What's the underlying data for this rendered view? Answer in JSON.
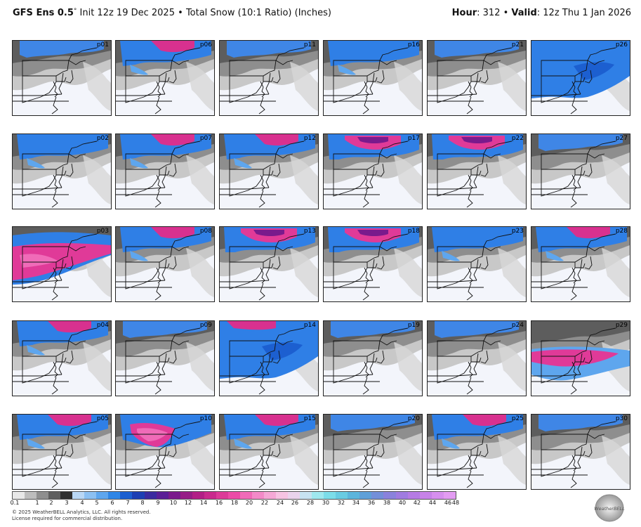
{
  "header": {
    "model": "GFS Ens 0.5",
    "degree": "°",
    "init": "Init 12z 19 Dec 2025",
    "sep": "•",
    "product": "Total Snow (10:1 Ratio) (Inches)",
    "hour_label": "Hour",
    "hour_value": ": 312",
    "valid_label": "Valid",
    "valid_value": ": 12z Thu 1 Jan 2026"
  },
  "panels": [
    {
      "label": "p01",
      "intensity": "low-north"
    },
    {
      "label": "p06",
      "intensity": "mid-north-pink"
    },
    {
      "label": "p11",
      "intensity": "low-north"
    },
    {
      "label": "p16",
      "intensity": "mid-north"
    },
    {
      "label": "p21",
      "intensity": "low-north"
    },
    {
      "label": "p26",
      "intensity": "wide-blue"
    },
    {
      "label": "p02",
      "intensity": "mid-north"
    },
    {
      "label": "p07",
      "intensity": "mid-north-pink"
    },
    {
      "label": "p12",
      "intensity": "mid-north-pink"
    },
    {
      "label": "p17",
      "intensity": "pink-north"
    },
    {
      "label": "p22",
      "intensity": "pink-north"
    },
    {
      "label": "p27",
      "intensity": "low-north"
    },
    {
      "label": "p03",
      "intensity": "pink-band"
    },
    {
      "label": "p08",
      "intensity": "mid-north-pink"
    },
    {
      "label": "p13",
      "intensity": "pink-north"
    },
    {
      "label": "p18",
      "intensity": "pink-north"
    },
    {
      "label": "p23",
      "intensity": "mid-north"
    },
    {
      "label": "p28",
      "intensity": "mid-north-pink"
    },
    {
      "label": "p04",
      "intensity": "mid-north-pink"
    },
    {
      "label": "p09",
      "intensity": "low-north"
    },
    {
      "label": "p14",
      "intensity": "wide-blue-pink"
    },
    {
      "label": "p19",
      "intensity": "low-north"
    },
    {
      "label": "p24",
      "intensity": "low-north"
    },
    {
      "label": "p29",
      "intensity": "pink-band-mid"
    },
    {
      "label": "p05",
      "intensity": "mid-north-pink"
    },
    {
      "label": "p10",
      "intensity": "pink-center"
    },
    {
      "label": "p15",
      "intensity": "mid-north-pink"
    },
    {
      "label": "p20",
      "intensity": "low-north"
    },
    {
      "label": "p25",
      "intensity": "mid-north-pink"
    },
    {
      "label": "p30",
      "intensity": "low-north"
    }
  ],
  "colorbar": {
    "colors": [
      "#e8e8e8",
      "#bdbdbd",
      "#8f8f8f",
      "#5f5f5f",
      "#2f2f2f",
      "#b9d7f5",
      "#8cc0f2",
      "#5ea6ee",
      "#2f86e6",
      "#1c5fd0",
      "#1d3fb3",
      "#3b2b9f",
      "#5a1f96",
      "#7a1a8c",
      "#961d86",
      "#b21f86",
      "#c92a8d",
      "#dc3a98",
      "#ec4ba7",
      "#f06bb8",
      "#f38ac8",
      "#f5a8d6",
      "#f6c3e2",
      "#ead3ec",
      "#c7e3f1",
      "#9fe8ef",
      "#7cdde9",
      "#69cbe2",
      "#5cb5dc",
      "#5fa0d8",
      "#738fd9",
      "#8a82dc",
      "#a07be0",
      "#b57be4",
      "#c782e8",
      "#d68fee",
      "#e39cf2"
    ],
    "ticks": [
      "0.1",
      "1",
      "2",
      "3",
      "4",
      "5",
      "6",
      "7",
      "8",
      "9",
      "10",
      "12",
      "14",
      "16",
      "18",
      "20",
      "22",
      "24",
      "26",
      "28",
      "30",
      "32",
      "34",
      "36",
      "38",
      "40",
      "42",
      "44",
      "46",
      "48"
    ]
  },
  "footer": {
    "line1": "© 2025 WeatherBELL Analytics, LLC. All rights reserved.",
    "line2": "License required for commercial distribution."
  },
  "logo": {
    "icon": "weatherbell-logo-icon",
    "text": "WeatherBELL"
  }
}
